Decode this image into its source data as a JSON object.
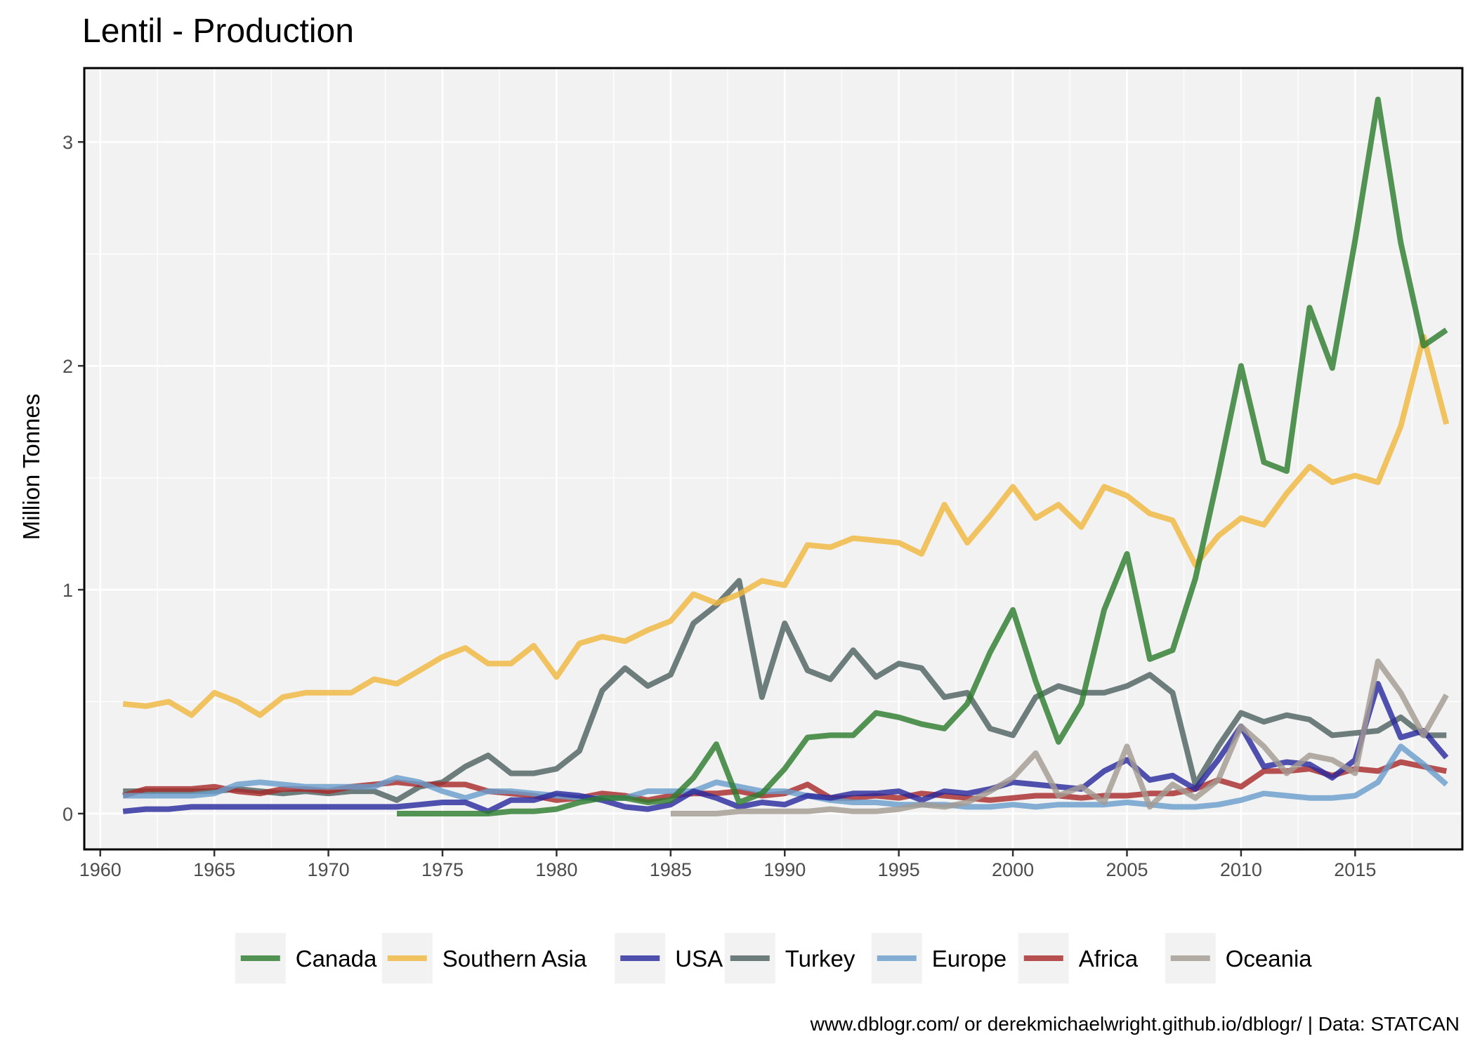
{
  "chart_data": {
    "type": "line",
    "title": "Lentil - Production",
    "xlabel": "",
    "ylabel": "Million Tonnes",
    "caption": "www.dblogr.com/ or derekmichaelwright.github.io/dblogr/ | Data: STATCAN",
    "xlim": [
      1959.3,
      2019.7
    ],
    "ylim": [
      -0.16,
      3.33
    ],
    "x_ticks": [
      1960,
      1965,
      1970,
      1975,
      1980,
      1985,
      1990,
      1995,
      2000,
      2005,
      2010,
      2015
    ],
    "x_tick_labels": [
      "1960",
      "1965",
      "1970",
      "1975",
      "1980",
      "1985",
      "1990",
      "1995",
      "2000",
      "2005",
      "2010",
      "2015"
    ],
    "y_ticks": [
      0,
      1,
      2,
      3
    ],
    "y_tick_labels": [
      "0",
      "1",
      "2",
      "3"
    ],
    "grid": true,
    "legend_position": "bottom",
    "series": [
      {
        "name": "Turkey",
        "color": "#4f6361",
        "x": [
          1961,
          1962,
          1963,
          1964,
          1965,
          1966,
          1967,
          1968,
          1969,
          1970,
          1971,
          1972,
          1973,
          1974,
          1975,
          1976,
          1977,
          1978,
          1979,
          1980,
          1981,
          1982,
          1983,
          1984,
          1985,
          1986,
          1987,
          1988,
          1989,
          1990,
          1991,
          1992,
          1993,
          1994,
          1995,
          1996,
          1997,
          1998,
          1999,
          2000,
          2001,
          2002,
          2003,
          2004,
          2005,
          2006,
          2007,
          2008,
          2009,
          2010,
          2011,
          2012,
          2013,
          2014,
          2015,
          2016,
          2017,
          2018,
          2019
        ],
        "values": [
          0.1,
          0.1,
          0.1,
          0.1,
          0.1,
          0.11,
          0.1,
          0.09,
          0.1,
          0.09,
          0.1,
          0.1,
          0.06,
          0.12,
          0.14,
          0.21,
          0.26,
          0.18,
          0.18,
          0.2,
          0.28,
          0.55,
          0.65,
          0.57,
          0.62,
          0.85,
          0.93,
          1.04,
          0.52,
          0.85,
          0.64,
          0.6,
          0.73,
          0.61,
          0.67,
          0.65,
          0.52,
          0.54,
          0.38,
          0.35,
          0.52,
          0.57,
          0.54,
          0.54,
          0.57,
          0.62,
          0.54,
          0.13,
          0.3,
          0.45,
          0.41,
          0.44,
          0.42,
          0.35,
          0.36,
          0.37,
          0.43,
          0.35,
          0.35
        ]
      },
      {
        "name": "Africa",
        "color": "#a82b2b",
        "x": [
          1961,
          1962,
          1963,
          1964,
          1965,
          1966,
          1967,
          1968,
          1969,
          1970,
          1971,
          1972,
          1973,
          1974,
          1975,
          1976,
          1977,
          1978,
          1979,
          1980,
          1981,
          1982,
          1983,
          1984,
          1985,
          1986,
          1987,
          1988,
          1989,
          1990,
          1991,
          1992,
          1993,
          1994,
          1995,
          1996,
          1997,
          1998,
          1999,
          2000,
          2001,
          2002,
          2003,
          2004,
          2005,
          2006,
          2007,
          2008,
          2009,
          2010,
          2011,
          2012,
          2013,
          2014,
          2015,
          2016,
          2017,
          2018,
          2019
        ],
        "values": [
          0.08,
          0.11,
          0.11,
          0.11,
          0.12,
          0.1,
          0.09,
          0.11,
          0.11,
          0.1,
          0.12,
          0.13,
          0.14,
          0.13,
          0.13,
          0.13,
          0.1,
          0.09,
          0.08,
          0.06,
          0.07,
          0.09,
          0.08,
          0.06,
          0.08,
          0.09,
          0.09,
          0.1,
          0.08,
          0.09,
          0.13,
          0.07,
          0.07,
          0.08,
          0.07,
          0.09,
          0.08,
          0.07,
          0.06,
          0.07,
          0.08,
          0.08,
          0.07,
          0.08,
          0.08,
          0.09,
          0.09,
          0.11,
          0.15,
          0.12,
          0.19,
          0.19,
          0.2,
          0.17,
          0.2,
          0.19,
          0.23,
          0.21,
          0.19
        ]
      },
      {
        "name": "Europe",
        "color": "#6a9ecc",
        "x": [
          1961,
          1962,
          1963,
          1964,
          1965,
          1966,
          1967,
          1968,
          1969,
          1970,
          1971,
          1972,
          1973,
          1974,
          1975,
          1976,
          1977,
          1978,
          1979,
          1980,
          1981,
          1982,
          1983,
          1984,
          1985,
          1986,
          1987,
          1988,
          1989,
          1990,
          1991,
          1992,
          1993,
          1994,
          1995,
          1996,
          1997,
          1998,
          1999,
          2000,
          2001,
          2002,
          2003,
          2004,
          2005,
          2006,
          2007,
          2008,
          2009,
          2010,
          2011,
          2012,
          2013,
          2014,
          2015,
          2016,
          2017,
          2018,
          2019
        ],
        "values": [
          0.08,
          0.08,
          0.08,
          0.08,
          0.09,
          0.13,
          0.14,
          0.13,
          0.12,
          0.12,
          0.12,
          0.12,
          0.16,
          0.14,
          0.1,
          0.07,
          0.1,
          0.1,
          0.09,
          0.08,
          0.07,
          0.07,
          0.07,
          0.1,
          0.1,
          0.1,
          0.14,
          0.12,
          0.1,
          0.1,
          0.08,
          0.06,
          0.05,
          0.05,
          0.04,
          0.04,
          0.04,
          0.03,
          0.03,
          0.04,
          0.03,
          0.04,
          0.04,
          0.04,
          0.05,
          0.04,
          0.03,
          0.03,
          0.04,
          0.06,
          0.09,
          0.08,
          0.07,
          0.07,
          0.08,
          0.14,
          0.3,
          0.22,
          0.13
        ]
      },
      {
        "name": "USA",
        "color": "#2b2b9e",
        "x": [
          1961,
          1962,
          1963,
          1964,
          1965,
          1966,
          1967,
          1968,
          1969,
          1970,
          1971,
          1972,
          1973,
          1974,
          1975,
          1976,
          1977,
          1978,
          1979,
          1980,
          1981,
          1982,
          1983,
          1984,
          1985,
          1986,
          1987,
          1988,
          1989,
          1990,
          1991,
          1992,
          1993,
          1994,
          1995,
          1996,
          1997,
          1998,
          1999,
          2000,
          2001,
          2002,
          2003,
          2004,
          2005,
          2006,
          2007,
          2008,
          2009,
          2010,
          2011,
          2012,
          2013,
          2014,
          2015,
          2016,
          2017,
          2018,
          2019
        ],
        "values": [
          0.01,
          0.02,
          0.02,
          0.03,
          0.03,
          0.03,
          0.03,
          0.03,
          0.03,
          0.03,
          0.03,
          0.03,
          0.03,
          0.04,
          0.05,
          0.05,
          0.01,
          0.06,
          0.06,
          0.09,
          0.08,
          0.06,
          0.03,
          0.02,
          0.04,
          0.1,
          0.07,
          0.03,
          0.05,
          0.04,
          0.08,
          0.07,
          0.09,
          0.09,
          0.1,
          0.06,
          0.1,
          0.09,
          0.11,
          0.14,
          0.13,
          0.12,
          0.11,
          0.19,
          0.24,
          0.15,
          0.17,
          0.11,
          0.24,
          0.39,
          0.21,
          0.23,
          0.22,
          0.16,
          0.24,
          0.58,
          0.34,
          0.37,
          0.25
        ]
      },
      {
        "name": "Oceania",
        "color": "#a39b92",
        "x": [
          1985,
          1986,
          1987,
          1988,
          1989,
          1990,
          1991,
          1992,
          1993,
          1994,
          1995,
          1996,
          1997,
          1998,
          1999,
          2000,
          2001,
          2002,
          2003,
          2004,
          2005,
          2006,
          2007,
          2008,
          2009,
          2010,
          2011,
          2012,
          2013,
          2014,
          2015,
          2016,
          2017,
          2018,
          2019
        ],
        "values": [
          0.0,
          0.0,
          0.0,
          0.01,
          0.01,
          0.01,
          0.01,
          0.02,
          0.01,
          0.01,
          0.02,
          0.04,
          0.03,
          0.05,
          0.1,
          0.16,
          0.27,
          0.08,
          0.12,
          0.05,
          0.3,
          0.03,
          0.13,
          0.07,
          0.15,
          0.39,
          0.3,
          0.18,
          0.26,
          0.24,
          0.18,
          0.68,
          0.54,
          0.35,
          0.53
        ]
      },
      {
        "name": "Southern Asia",
        "color": "#f0b840",
        "x": [
          1961,
          1962,
          1963,
          1964,
          1965,
          1966,
          1967,
          1968,
          1969,
          1970,
          1971,
          1972,
          1973,
          1974,
          1975,
          1976,
          1977,
          1978,
          1979,
          1980,
          1981,
          1982,
          1983,
          1984,
          1985,
          1986,
          1987,
          1988,
          1989,
          1990,
          1991,
          1992,
          1993,
          1994,
          1995,
          1996,
          1997,
          1998,
          1999,
          2000,
          2001,
          2002,
          2003,
          2004,
          2005,
          2006,
          2007,
          2008,
          2009,
          2010,
          2011,
          2012,
          2013,
          2014,
          2015,
          2016,
          2017,
          2018,
          2019
        ],
        "values": [
          0.49,
          0.48,
          0.5,
          0.44,
          0.54,
          0.5,
          0.44,
          0.52,
          0.54,
          0.54,
          0.54,
          0.6,
          0.58,
          0.64,
          0.7,
          0.74,
          0.67,
          0.67,
          0.75,
          0.61,
          0.76,
          0.79,
          0.77,
          0.82,
          0.86,
          0.98,
          0.94,
          0.98,
          1.04,
          1.02,
          1.2,
          1.19,
          1.23,
          1.22,
          1.21,
          1.16,
          1.38,
          1.21,
          1.33,
          1.46,
          1.32,
          1.38,
          1.28,
          1.46,
          1.42,
          1.34,
          1.31,
          1.11,
          1.24,
          1.32,
          1.29,
          1.43,
          1.55,
          1.48,
          1.51,
          1.48,
          1.73,
          2.13,
          1.74
        ]
      },
      {
        "name": "Canada",
        "color": "#2e7d2e",
        "x": [
          1973,
          1974,
          1975,
          1976,
          1977,
          1978,
          1979,
          1980,
          1981,
          1982,
          1983,
          1984,
          1985,
          1986,
          1987,
          1988,
          1989,
          1990,
          1991,
          1992,
          1993,
          1994,
          1995,
          1996,
          1997,
          1998,
          1999,
          2000,
          2001,
          2002,
          2003,
          2004,
          2005,
          2006,
          2007,
          2008,
          2009,
          2010,
          2011,
          2012,
          2013,
          2014,
          2015,
          2016,
          2017,
          2018,
          2019
        ],
        "values": [
          0.0,
          0.0,
          0.0,
          0.0,
          0.0,
          0.01,
          0.01,
          0.02,
          0.05,
          0.07,
          0.07,
          0.05,
          0.06,
          0.16,
          0.31,
          0.05,
          0.09,
          0.2,
          0.34,
          0.35,
          0.35,
          0.45,
          0.43,
          0.4,
          0.38,
          0.49,
          0.72,
          0.91,
          0.59,
          0.32,
          0.49,
          0.91,
          1.16,
          0.69,
          0.73,
          1.05,
          1.51,
          2.0,
          1.57,
          1.53,
          2.26,
          1.99,
          2.56,
          3.19,
          2.55,
          2.09,
          2.16
        ]
      }
    ],
    "legend_order": [
      "Canada",
      "Southern Asia",
      "USA",
      "Turkey",
      "Europe",
      "Africa",
      "Oceania"
    ]
  }
}
